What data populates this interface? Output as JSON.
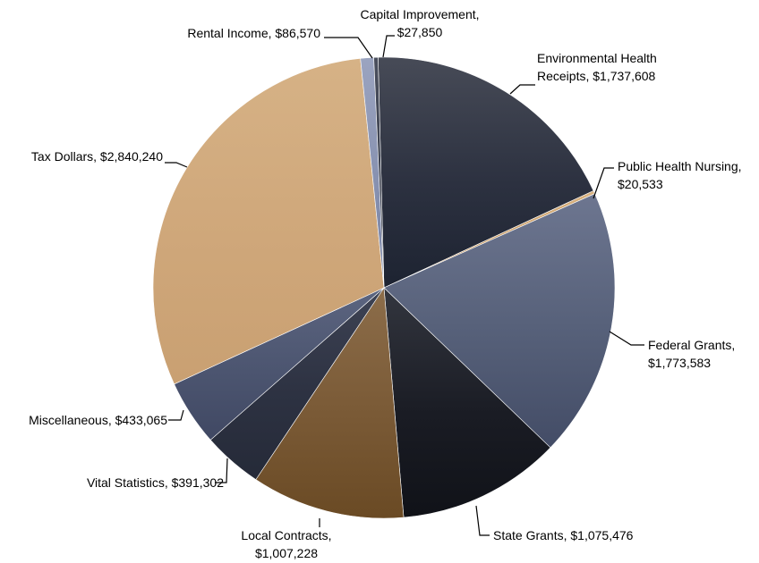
{
  "chart_data": {
    "type": "pie",
    "title": "",
    "start_angle_deg": -1.47,
    "direction": "clockwise",
    "slices": [
      {
        "name": "Environmental Health Receipts",
        "value": 1737608,
        "value_label": "$1,737,608",
        "color": "#2c3140",
        "color_light": "#474b57",
        "color_dark": "#1d2331"
      },
      {
        "name": "Public Health Nursing",
        "value": 20533,
        "value_label": "$20,533",
        "color": "#c89a62",
        "color_light": "#d9b382",
        "color_dark": "#b27f45"
      },
      {
        "name": "Federal Grants",
        "value": 1773583,
        "value_label": "$1,773,583",
        "color": "#566079",
        "color_light": "#6d7690",
        "color_dark": "#434c66"
      },
      {
        "name": "State Grants",
        "value": 1075476,
        "value_label": "$1,075,476",
        "color": "#1a1c24",
        "color_light": "#33363f",
        "color_dark": "#101218"
      },
      {
        "name": "Local Contracts",
        "value": 1007228,
        "value_label": "$1,007,228",
        "color": "#7a5a36",
        "color_light": "#8c6d4a",
        "color_dark": "#6a4a24"
      },
      {
        "name": "Vital Statistics",
        "value": 391302,
        "value_label": "$391,302",
        "color": "#2d3242",
        "color_light": "#3e4354",
        "color_dark": "#252a38"
      },
      {
        "name": "Miscellaneous",
        "value": 433065,
        "value_label": "$433,065",
        "color": "#4c5570",
        "color_light": "#5c6580",
        "color_dark": "#404863"
      },
      {
        "name": "Tax Dollars",
        "value": 2840240,
        "value_label": "$2,840,240",
        "color": "#cfa77a",
        "color_light": "#d6b286",
        "color_dark": "#c9a072"
      },
      {
        "name": "Rental Income",
        "value": 86570,
        "value_label": "$86,570",
        "color": "#8791b0",
        "color_light": "#9ba4c0",
        "color_dark": "#7983a3"
      },
      {
        "name": "Capital Improvement",
        "value": 27850,
        "value_label": "$27,850",
        "color": "#3a3f4d",
        "color_light": "#4a4f5d",
        "color_dark": "#2c303c"
      }
    ],
    "labels": [
      {
        "lines": [
          "Environmental Health",
          "Receipts, $1,737,608"
        ]
      },
      {
        "lines": [
          "Public Health Nursing,",
          "$20,533"
        ]
      },
      {
        "lines": [
          "Federal Grants,",
          "$1,773,583"
        ]
      },
      {
        "lines": [
          "State Grants, $1,075,476"
        ]
      },
      {
        "lines": [
          "Local Contracts,",
          "$1,007,228"
        ]
      },
      {
        "lines": [
          "Vital Statistics, $391,302"
        ]
      },
      {
        "lines": [
          "Miscellaneous, $433,065"
        ]
      },
      {
        "lines": [
          "Tax Dollars, $2,840,240"
        ]
      },
      {
        "lines": [
          "Rental Income, $86,570"
        ]
      },
      {
        "lines": [
          "Capital Improvement,",
          "$27,850"
        ]
      }
    ]
  }
}
